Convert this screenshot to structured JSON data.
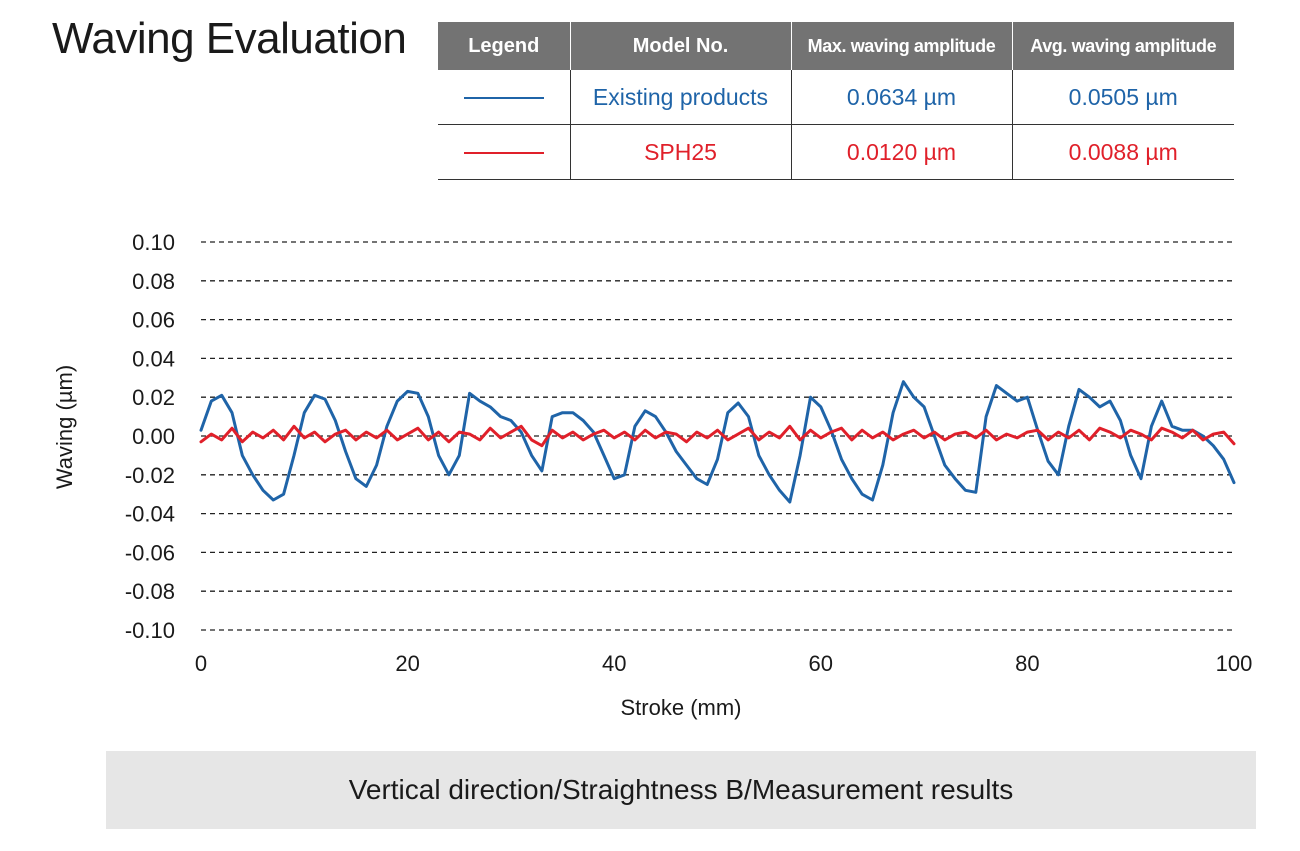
{
  "title": "Waving Evaluation",
  "legend_table": {
    "headers": [
      "Legend",
      "Model No.",
      "Max. waving amplitude",
      "Avg. waving amplitude"
    ],
    "rows": [
      {
        "model": "Existing products",
        "max": "0.0634 µm",
        "avg": "0.0505 µm",
        "color": "#1f64a8"
      },
      {
        "model": "SPH25",
        "max": "0.0120 µm",
        "avg": "0.0088 µm",
        "color": "#e0202a"
      }
    ]
  },
  "caption": "Vertical direction/Straightness B/Measurement results",
  "chart_data": {
    "type": "line",
    "title": "",
    "xlabel": "Stroke (mm)",
    "ylabel": "Waving (µm)",
    "xlim": [
      0,
      100
    ],
    "ylim": [
      -0.1,
      0.1
    ],
    "xticks": [
      "0",
      "20",
      "40",
      "60",
      "80",
      "100"
    ],
    "yticks": [
      "0.10",
      "0.08",
      "0.06",
      "0.04",
      "0.02",
      "0.00",
      "-0.02",
      "-0.04",
      "-0.06",
      "-0.08",
      "-0.10"
    ],
    "grid": "horizontal dashed",
    "series": [
      {
        "name": "Existing products",
        "color": "#1f64a8",
        "x": [
          0,
          1,
          2,
          3,
          4,
          5,
          6,
          7,
          8,
          9,
          10,
          11,
          12,
          13,
          14,
          15,
          16,
          17,
          18,
          19,
          20,
          21,
          22,
          23,
          24,
          25,
          26,
          27,
          28,
          29,
          30,
          31,
          32,
          33,
          34,
          35,
          36,
          37,
          38,
          39,
          40,
          41,
          42,
          43,
          44,
          45,
          46,
          47,
          48,
          49,
          50,
          51,
          52,
          53,
          54,
          55,
          56,
          57,
          58,
          59,
          60,
          61,
          62,
          63,
          64,
          65,
          66,
          67,
          68,
          69,
          70,
          71,
          72,
          73,
          74,
          75,
          76,
          77,
          78,
          79,
          80,
          81,
          82,
          83,
          84,
          85,
          86,
          87,
          88,
          89,
          90,
          91,
          92,
          93,
          94,
          95,
          96,
          97,
          98,
          99,
          100
        ],
        "values": [
          0.003,
          0.018,
          0.021,
          0.012,
          -0.01,
          -0.02,
          -0.028,
          -0.033,
          -0.03,
          -0.01,
          0.012,
          0.021,
          0.019,
          0.008,
          -0.008,
          -0.022,
          -0.026,
          -0.015,
          0.005,
          0.018,
          0.023,
          0.022,
          0.01,
          -0.01,
          -0.02,
          -0.01,
          0.022,
          0.018,
          0.015,
          0.01,
          0.008,
          0.002,
          -0.01,
          -0.018,
          0.01,
          0.012,
          0.012,
          0.008,
          0.002,
          -0.01,
          -0.022,
          -0.02,
          0.005,
          0.013,
          0.01,
          0.002,
          -0.008,
          -0.015,
          -0.022,
          -0.025,
          -0.012,
          0.012,
          0.017,
          0.01,
          -0.01,
          -0.02,
          -0.028,
          -0.034,
          -0.01,
          0.02,
          0.015,
          0.003,
          -0.012,
          -0.022,
          -0.03,
          -0.033,
          -0.015,
          0.012,
          0.028,
          0.02,
          0.015,
          0.0,
          -0.015,
          -0.022,
          -0.028,
          -0.029,
          0.01,
          0.026,
          0.022,
          0.018,
          0.02,
          0.003,
          -0.013,
          -0.02,
          0.005,
          0.024,
          0.02,
          0.015,
          0.018,
          0.008,
          -0.01,
          -0.022,
          0.005,
          0.018,
          0.005,
          0.003,
          0.003,
          0.0,
          -0.005,
          -0.012,
          -0.024
        ]
      },
      {
        "name": "SPH25",
        "color": "#e0202a",
        "x": [
          0,
          1,
          2,
          3,
          4,
          5,
          6,
          7,
          8,
          9,
          10,
          11,
          12,
          13,
          14,
          15,
          16,
          17,
          18,
          19,
          20,
          21,
          22,
          23,
          24,
          25,
          26,
          27,
          28,
          29,
          30,
          31,
          32,
          33,
          34,
          35,
          36,
          37,
          38,
          39,
          40,
          41,
          42,
          43,
          44,
          45,
          46,
          47,
          48,
          49,
          50,
          51,
          52,
          53,
          54,
          55,
          56,
          57,
          58,
          59,
          60,
          61,
          62,
          63,
          64,
          65,
          66,
          67,
          68,
          69,
          70,
          71,
          72,
          73,
          74,
          75,
          76,
          77,
          78,
          79,
          80,
          81,
          82,
          83,
          84,
          85,
          86,
          87,
          88,
          89,
          90,
          91,
          92,
          93,
          94,
          95,
          96,
          97,
          98,
          99,
          100
        ],
        "values": [
          -0.003,
          0.001,
          -0.002,
          0.004,
          -0.003,
          0.002,
          -0.001,
          0.003,
          -0.002,
          0.005,
          -0.001,
          0.002,
          -0.003,
          0.001,
          0.003,
          -0.002,
          0.002,
          -0.001,
          0.003,
          -0.002,
          0.001,
          0.004,
          -0.002,
          0.002,
          -0.003,
          0.002,
          0.001,
          -0.002,
          0.004,
          -0.001,
          0.002,
          0.005,
          -0.002,
          -0.005,
          0.003,
          -0.001,
          0.002,
          -0.002,
          0.001,
          0.003,
          -0.001,
          0.002,
          -0.002,
          0.003,
          -0.001,
          0.002,
          0.001,
          -0.003,
          0.002,
          -0.001,
          0.003,
          -0.002,
          0.001,
          0.004,
          -0.002,
          0.002,
          -0.001,
          0.005,
          -0.002,
          0.003,
          -0.001,
          0.002,
          0.004,
          -0.002,
          0.003,
          -0.001,
          0.002,
          -0.002,
          0.001,
          0.003,
          -0.001,
          0.002,
          -0.002,
          0.001,
          0.002,
          -0.001,
          0.003,
          -0.002,
          0.001,
          -0.001,
          0.002,
          0.003,
          -0.002,
          0.002,
          -0.001,
          0.003,
          -0.002,
          0.004,
          0.002,
          -0.001,
          0.003,
          0.001,
          -0.002,
          0.004,
          0.002,
          -0.001,
          0.003,
          -0.002,
          0.001,
          0.002,
          -0.004
        ]
      }
    ]
  }
}
